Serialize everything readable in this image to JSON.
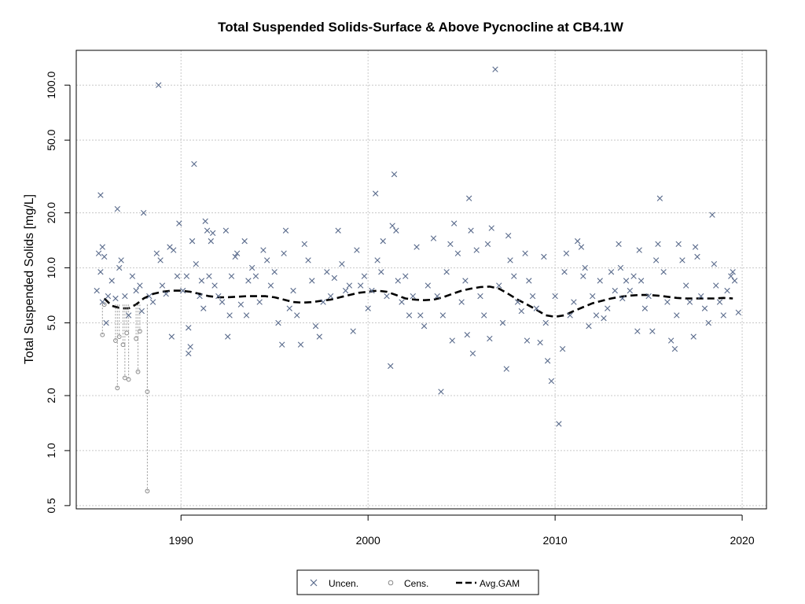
{
  "chart_data": {
    "type": "scatter",
    "title": "Total Suspended Solids-Surface & Above Pycnocline at CB4.1W",
    "xlabel": "",
    "ylabel": "Total Suspended Solids [mg/L]",
    "y_scale": "log",
    "xlim": [
      1984.4,
      2021.3
    ],
    "ylim": [
      0.48,
      155
    ],
    "x_ticks": [
      1990,
      2000,
      2010,
      2020
    ],
    "y_ticks": [
      0.5,
      1.0,
      2.0,
      5.0,
      10.0,
      20.0,
      50.0,
      100.0
    ],
    "x_tick_labels": [
      "1990",
      "2000",
      "2010",
      "2020"
    ],
    "y_tick_labels": [
      "0.5",
      "1.0",
      "2.0",
      "5.0",
      "10.0",
      "20.0",
      "50.0",
      "100.0"
    ],
    "grid": true,
    "legend_position": "bottom-center",
    "colors": {
      "uncensored": "#5a6b8c",
      "censored": "#888888",
      "gam": "#000000",
      "grid": "#c8c8c8"
    },
    "legend": [
      {
        "label": "Uncen.",
        "marker": "x"
      },
      {
        "label": "Cens.",
        "marker": "circle"
      },
      {
        "label": "Avg.GAM",
        "marker": "dashed-line"
      }
    ],
    "series": [
      {
        "name": "Uncen.",
        "marker": "x",
        "points": [
          [
            1985.7,
            25.0
          ],
          [
            1985.6,
            12.0
          ],
          [
            1985.8,
            13.0
          ],
          [
            1985.9,
            11.5
          ],
          [
            1985.5,
            7.5
          ],
          [
            1985.7,
            9.5
          ],
          [
            1985.8,
            6.5
          ],
          [
            1986.0,
            5.0
          ],
          [
            1986.1,
            7.0
          ],
          [
            1986.3,
            8.5
          ],
          [
            1986.5,
            6.8
          ],
          [
            1986.6,
            21.0
          ],
          [
            1986.7,
            10.0
          ],
          [
            1986.8,
            11.0
          ],
          [
            1987.0,
            7.0
          ],
          [
            1987.2,
            5.5
          ],
          [
            1987.4,
            9.0
          ],
          [
            1987.6,
            7.5
          ],
          [
            1987.8,
            8.0
          ],
          [
            1987.9,
            5.8
          ],
          [
            1988.0,
            20.0
          ],
          [
            1988.3,
            7.0
          ],
          [
            1988.5,
            6.5
          ],
          [
            1988.7,
            12.0
          ],
          [
            1988.8,
            100.0
          ],
          [
            1988.9,
            11.0
          ],
          [
            1989.0,
            8.0
          ],
          [
            1989.2,
            7.2
          ],
          [
            1989.4,
            13.0
          ],
          [
            1989.5,
            4.2
          ],
          [
            1989.6,
            12.5
          ],
          [
            1989.8,
            9.0
          ],
          [
            1989.9,
            17.5
          ],
          [
            1990.1,
            7.5
          ],
          [
            1990.3,
            9.0
          ],
          [
            1990.4,
            3.4
          ],
          [
            1990.5,
            3.7
          ],
          [
            1990.4,
            4.7
          ],
          [
            1990.6,
            14.0
          ],
          [
            1990.7,
            37.0
          ],
          [
            1990.8,
            10.5
          ],
          [
            1991.0,
            7.0
          ],
          [
            1991.1,
            8.5
          ],
          [
            1991.2,
            6.0
          ],
          [
            1991.3,
            18.0
          ],
          [
            1991.4,
            16.0
          ],
          [
            1991.5,
            9.0
          ],
          [
            1991.6,
            14.0
          ],
          [
            1991.7,
            15.5
          ],
          [
            1991.8,
            8.0
          ],
          [
            1992.0,
            7.0
          ],
          [
            1992.2,
            6.5
          ],
          [
            1992.4,
            16.0
          ],
          [
            1992.5,
            4.2
          ],
          [
            1992.6,
            5.5
          ],
          [
            1992.7,
            9.0
          ],
          [
            1992.9,
            11.5
          ],
          [
            1993.0,
            12.0
          ],
          [
            1993.2,
            6.3
          ],
          [
            1993.4,
            14.0
          ],
          [
            1993.5,
            5.5
          ],
          [
            1993.6,
            8.5
          ],
          [
            1993.8,
            10.0
          ],
          [
            1994.0,
            9.0
          ],
          [
            1994.2,
            6.5
          ],
          [
            1994.4,
            12.5
          ],
          [
            1994.6,
            11.0
          ],
          [
            1994.8,
            8.0
          ],
          [
            1995.0,
            9.5
          ],
          [
            1995.2,
            5.0
          ],
          [
            1995.4,
            3.8
          ],
          [
            1995.5,
            12.0
          ],
          [
            1995.6,
            16.0
          ],
          [
            1995.8,
            6.0
          ],
          [
            1996.0,
            7.5
          ],
          [
            1996.2,
            5.5
          ],
          [
            1996.4,
            3.8
          ],
          [
            1996.6,
            13.5
          ],
          [
            1996.8,
            11.0
          ],
          [
            1997.0,
            8.5
          ],
          [
            1997.2,
            4.8
          ],
          [
            1997.4,
            4.2
          ],
          [
            1997.6,
            6.5
          ],
          [
            1997.8,
            9.5
          ],
          [
            1998.0,
            7.0
          ],
          [
            1998.2,
            8.8
          ],
          [
            1998.4,
            16.0
          ],
          [
            1998.6,
            10.5
          ],
          [
            1998.8,
            7.5
          ],
          [
            1999.0,
            8.0
          ],
          [
            1999.2,
            4.5
          ],
          [
            1999.4,
            12.5
          ],
          [
            1999.6,
            8.0
          ],
          [
            1999.8,
            9.0
          ],
          [
            2000.0,
            6.0
          ],
          [
            2000.2,
            7.5
          ],
          [
            2000.4,
            25.5
          ],
          [
            2000.5,
            11.0
          ],
          [
            2000.7,
            9.5
          ],
          [
            2000.8,
            14.0
          ],
          [
            2001.0,
            7.0
          ],
          [
            2001.2,
            2.9
          ],
          [
            2001.3,
            17.0
          ],
          [
            2001.4,
            32.5
          ],
          [
            2001.5,
            16.0
          ],
          [
            2001.6,
            8.5
          ],
          [
            2001.8,
            6.5
          ],
          [
            2002.0,
            9.0
          ],
          [
            2002.2,
            5.5
          ],
          [
            2002.4,
            7.0
          ],
          [
            2002.6,
            13.0
          ],
          [
            2002.8,
            5.5
          ],
          [
            2003.0,
            4.8
          ],
          [
            2003.2,
            8.0
          ],
          [
            2003.5,
            14.5
          ],
          [
            2003.7,
            7.0
          ],
          [
            2003.9,
            2.1
          ],
          [
            2004.0,
            5.5
          ],
          [
            2004.2,
            9.5
          ],
          [
            2004.4,
            13.5
          ],
          [
            2004.5,
            4.0
          ],
          [
            2004.6,
            17.5
          ],
          [
            2004.8,
            12.0
          ],
          [
            2005.0,
            6.5
          ],
          [
            2005.2,
            8.5
          ],
          [
            2005.3,
            4.3
          ],
          [
            2005.4,
            24.0
          ],
          [
            2005.5,
            16.0
          ],
          [
            2005.6,
            3.4
          ],
          [
            2005.8,
            12.5
          ],
          [
            2006.0,
            7.0
          ],
          [
            2006.2,
            5.5
          ],
          [
            2006.4,
            13.5
          ],
          [
            2006.5,
            4.1
          ],
          [
            2006.6,
            16.5
          ],
          [
            2006.8,
            122.0
          ],
          [
            2007.0,
            8.0
          ],
          [
            2007.2,
            5.0
          ],
          [
            2007.4,
            2.8
          ],
          [
            2007.5,
            15.0
          ],
          [
            2007.6,
            11.0
          ],
          [
            2007.8,
            9.0
          ],
          [
            2008.0,
            6.5
          ],
          [
            2008.2,
            5.8
          ],
          [
            2008.4,
            12.0
          ],
          [
            2008.5,
            4.0
          ],
          [
            2008.6,
            8.5
          ],
          [
            2008.8,
            7.0
          ],
          [
            2009.0,
            6.0
          ],
          [
            2009.2,
            3.9
          ],
          [
            2009.4,
            11.5
          ],
          [
            2009.5,
            5.0
          ],
          [
            2009.6,
            3.1
          ],
          [
            2009.8,
            2.4
          ],
          [
            2010.0,
            7.0
          ],
          [
            2010.2,
            1.4
          ],
          [
            2010.4,
            3.6
          ],
          [
            2010.5,
            9.5
          ],
          [
            2010.6,
            12.0
          ],
          [
            2010.8,
            5.5
          ],
          [
            2011.0,
            6.5
          ],
          [
            2011.2,
            14.0
          ],
          [
            2011.4,
            13.0
          ],
          [
            2011.5,
            9.0
          ],
          [
            2011.6,
            10.0
          ],
          [
            2011.8,
            4.8
          ],
          [
            2012.0,
            7.0
          ],
          [
            2012.2,
            5.5
          ],
          [
            2012.4,
            8.5
          ],
          [
            2012.6,
            5.3
          ],
          [
            2012.8,
            6.0
          ],
          [
            2013.0,
            9.5
          ],
          [
            2013.2,
            7.5
          ],
          [
            2013.4,
            13.5
          ],
          [
            2013.5,
            10.0
          ],
          [
            2013.6,
            6.8
          ],
          [
            2013.8,
            8.5
          ],
          [
            2014.0,
            7.5
          ],
          [
            2014.2,
            9.0
          ],
          [
            2014.4,
            4.5
          ],
          [
            2014.5,
            12.5
          ],
          [
            2014.6,
            8.5
          ],
          [
            2014.8,
            6.0
          ],
          [
            2015.0,
            7.0
          ],
          [
            2015.2,
            4.5
          ],
          [
            2015.4,
            11.0
          ],
          [
            2015.5,
            13.5
          ],
          [
            2015.6,
            24.0
          ],
          [
            2015.8,
            9.5
          ],
          [
            2016.0,
            6.5
          ],
          [
            2016.2,
            4.0
          ],
          [
            2016.4,
            3.6
          ],
          [
            2016.5,
            5.5
          ],
          [
            2016.6,
            13.5
          ],
          [
            2016.8,
            11.0
          ],
          [
            2017.0,
            8.0
          ],
          [
            2017.2,
            6.5
          ],
          [
            2017.4,
            4.2
          ],
          [
            2017.5,
            13.0
          ],
          [
            2017.6,
            11.5
          ],
          [
            2017.8,
            7.0
          ],
          [
            2018.0,
            6.0
          ],
          [
            2018.2,
            5.0
          ],
          [
            2018.4,
            19.5
          ],
          [
            2018.5,
            10.5
          ],
          [
            2018.6,
            8.0
          ],
          [
            2018.8,
            6.5
          ],
          [
            2019.0,
            5.5
          ],
          [
            2019.2,
            7.5
          ],
          [
            2019.4,
            9.0
          ],
          [
            2019.5,
            9.5
          ],
          [
            2019.6,
            8.5
          ],
          [
            2019.8,
            5.7
          ]
        ]
      },
      {
        "name": "Cens.",
        "marker": "circle",
        "points": [
          [
            1985.8,
            4.3
          ],
          [
            1985.9,
            6.3
          ],
          [
            1986.5,
            4.0
          ],
          [
            1986.6,
            2.2
          ],
          [
            1986.7,
            4.2
          ],
          [
            1986.9,
            3.8
          ],
          [
            1987.0,
            2.5
          ],
          [
            1987.1,
            4.4
          ],
          [
            1987.2,
            2.45
          ],
          [
            1987.6,
            4.1
          ],
          [
            1987.7,
            2.7
          ],
          [
            1987.8,
            4.5
          ],
          [
            1988.2,
            2.1
          ],
          [
            1988.2,
            0.6
          ]
        ]
      },
      {
        "name": "Avg.GAM",
        "marker": "dashed-line",
        "x": [
          1985.9,
          1986.3,
          1986.8,
          1987.2,
          1987.6,
          1988.0,
          1988.5,
          1989.0,
          1989.5,
          1990.0,
          1990.5,
          1991.0,
          1991.5,
          1992.0,
          1992.5,
          1993.0,
          1993.5,
          1994.0,
          1994.5,
          1995.0,
          1995.5,
          1996.0,
          1996.5,
          1997.0,
          1997.5,
          1998.0,
          1998.5,
          1999.0,
          1999.5,
          2000.0,
          2000.5,
          2001.0,
          2001.5,
          2002.0,
          2002.5,
          2003.0,
          2003.5,
          2004.0,
          2004.5,
          2005.0,
          2005.5,
          2006.0,
          2006.5,
          2007.0,
          2007.5,
          2008.0,
          2008.5,
          2009.0,
          2009.5,
          2010.0,
          2010.5,
          2011.0,
          2011.5,
          2012.0,
          2012.5,
          2013.0,
          2013.5,
          2014.0,
          2014.5,
          2015.0,
          2015.5,
          2016.0,
          2016.5,
          2017.0,
          2017.5,
          2018.0,
          2018.5,
          2019.0,
          2019.5
        ],
        "y": [
          6.8,
          6.2,
          6.0,
          6.0,
          6.3,
          6.8,
          7.2,
          7.4,
          7.5,
          7.5,
          7.4,
          7.2,
          7.0,
          6.9,
          6.9,
          6.95,
          7.0,
          7.0,
          7.0,
          6.9,
          6.7,
          6.5,
          6.45,
          6.5,
          6.6,
          6.7,
          6.9,
          7.1,
          7.3,
          7.4,
          7.5,
          7.4,
          7.1,
          6.8,
          6.7,
          6.65,
          6.7,
          6.9,
          7.2,
          7.5,
          7.7,
          7.85,
          7.9,
          7.7,
          7.2,
          6.7,
          6.3,
          5.9,
          5.5,
          5.4,
          5.5,
          5.8,
          6.1,
          6.4,
          6.6,
          6.8,
          6.95,
          7.05,
          7.1,
          7.1,
          7.05,
          6.95,
          6.85,
          6.8,
          6.8,
          6.8,
          6.8,
          6.85,
          6.8
        ]
      }
    ]
  }
}
